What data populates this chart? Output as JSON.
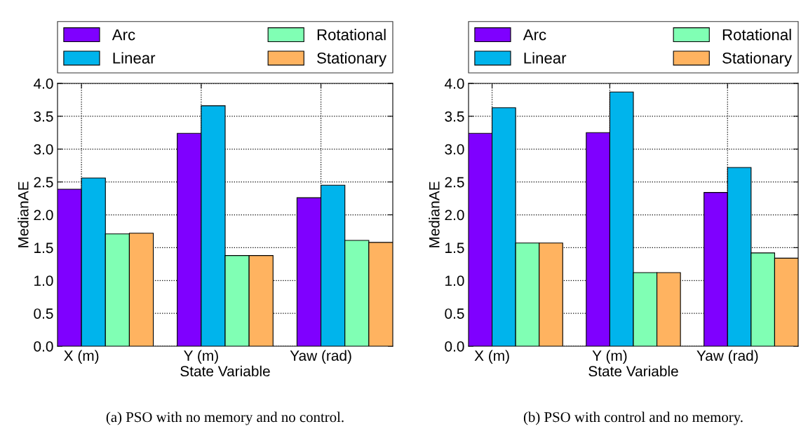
{
  "chart_data": [
    {
      "type": "bar",
      "categories": [
        "X (m)",
        "Y (m)",
        "Yaw (rad)"
      ],
      "xlabel": "State Variable",
      "ylabel": "MedianAE",
      "ylim": [
        0,
        4
      ],
      "yticks": [
        {
          "value": 0,
          "label": "0.0"
        },
        {
          "value": 0.5,
          "label": "0.5"
        },
        {
          "value": 1,
          "label": "1.0"
        },
        {
          "value": 1.5,
          "label": "1.5"
        },
        {
          "value": 2,
          "label": "2.0"
        },
        {
          "value": 2.5,
          "label": "2.5"
        },
        {
          "value": 3,
          "label": "3.0"
        },
        {
          "value": 3.5,
          "label": "3.5"
        },
        {
          "value": 4,
          "label": "4.0"
        }
      ],
      "grid": true,
      "legend": "top",
      "series": [
        {
          "name": "Arc",
          "color": "#7f00ff",
          "values": [
            2.39,
            3.24,
            2.26
          ]
        },
        {
          "name": "Linear",
          "color": "#00b4ec",
          "values": [
            2.56,
            3.66,
            2.45
          ]
        },
        {
          "name": "Rotational",
          "color": "#80ffb4",
          "values": [
            1.71,
            1.38,
            1.61
          ]
        },
        {
          "name": "Stationary",
          "color": "#ffb360",
          "values": [
            1.72,
            1.38,
            1.58
          ]
        }
      ],
      "annotations": [
        "(a) PSO with no memory and no control."
      ]
    },
    {
      "type": "bar",
      "categories": [
        "X (m)",
        "Y (m)",
        "Yaw (rad)"
      ],
      "xlabel": "State Variable",
      "ylabel": "MedianAE",
      "ylim": [
        0,
        4
      ],
      "yticks": [
        {
          "value": 0,
          "label": "0.0"
        },
        {
          "value": 0.5,
          "label": "0.5"
        },
        {
          "value": 1,
          "label": "1.0"
        },
        {
          "value": 1.5,
          "label": "1.5"
        },
        {
          "value": 2,
          "label": "2.0"
        },
        {
          "value": 2.5,
          "label": "2.5"
        },
        {
          "value": 3,
          "label": "3.0"
        },
        {
          "value": 3.5,
          "label": "3.5"
        },
        {
          "value": 4,
          "label": "4.0"
        }
      ],
      "grid": true,
      "legend": "top",
      "series": [
        {
          "name": "Arc",
          "color": "#7f00ff",
          "values": [
            3.24,
            3.25,
            2.34
          ]
        },
        {
          "name": "Linear",
          "color": "#00b4ec",
          "values": [
            3.63,
            3.87,
            2.72
          ]
        },
        {
          "name": "Rotational",
          "color": "#80ffb4",
          "values": [
            1.57,
            1.12,
            1.42
          ]
        },
        {
          "name": "Stationary",
          "color": "#ffb360",
          "values": [
            1.57,
            1.12,
            1.34
          ]
        }
      ],
      "annotations": [
        "(b) PSO with control and no memory."
      ]
    }
  ]
}
